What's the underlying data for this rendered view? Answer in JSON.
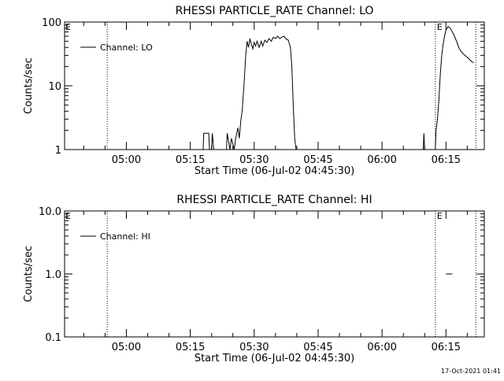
{
  "chart_data": [
    {
      "type": "line",
      "title": "RHESSI PARTICLE_RATE Channel: LO",
      "xlabel": "Start Time (06-Jul-02 04:45:30)",
      "ylabel": "Counts/sec",
      "y_scale": "log",
      "ylim": [
        1,
        100
      ],
      "xlim": [
        "04:45:30",
        "06:24:00"
      ],
      "x_ticks": [
        "05:00",
        "05:15",
        "05:30",
        "05:45",
        "06:00",
        "06:15"
      ],
      "y_ticks": [
        "1",
        "10",
        "100"
      ],
      "legend": {
        "placement": "top-left",
        "entries": [
          "Channel: LO"
        ]
      },
      "markers": [
        {
          "time": "04:55:30",
          "label": ""
        },
        {
          "time": "06:12:30",
          "label": "E"
        },
        {
          "time": "06:22:00",
          "label": ""
        }
      ],
      "left_marker_label": "E",
      "series": [
        {
          "name": "Channel: LO",
          "segments": [
            [
              [
                "05:18:00",
                1
              ],
              [
                "05:18:10",
                1.8
              ],
              [
                "05:19:20",
                1.8
              ],
              [
                "05:19:30",
                1
              ],
              [
                "05:20:00",
                1
              ],
              [
                "05:20:10",
                1.8
              ],
              [
                "05:20:30",
                1
              ]
            ],
            [
              [
                "05:23:30",
                1
              ],
              [
                "05:23:40",
                1.8
              ],
              [
                "05:24:20",
                1
              ],
              [
                "05:24:40",
                1.5
              ],
              [
                "05:25:20",
                1
              ],
              [
                "05:25:40",
                1.5
              ],
              [
                "05:26:10",
                2.2
              ],
              [
                "05:26:30",
                1.5
              ],
              [
                "05:26:50",
                2.8
              ],
              [
                "05:27:10",
                4
              ],
              [
                "05:27:40",
                12
              ],
              [
                "05:28:00",
                30
              ],
              [
                "05:28:20",
                50
              ],
              [
                "05:28:40",
                40
              ],
              [
                "05:29:00",
                55
              ],
              [
                "05:29:20",
                45
              ],
              [
                "05:29:40",
                38
              ],
              [
                "05:30:00",
                48
              ],
              [
                "05:30:20",
                42
              ],
              [
                "05:30:40",
                50
              ],
              [
                "05:31:10",
                40
              ],
              [
                "05:31:40",
                50
              ],
              [
                "05:32:00",
                42
              ],
              [
                "05:32:30",
                52
              ],
              [
                "05:33:00",
                48
              ],
              [
                "05:33:30",
                55
              ],
              [
                "05:34:00",
                50
              ],
              [
                "05:34:30",
                58
              ],
              [
                "05:35:00",
                55
              ],
              [
                "05:35:30",
                60
              ],
              [
                "05:36:00",
                55
              ],
              [
                "05:36:30",
                58
              ],
              [
                "05:37:00",
                60
              ],
              [
                "05:37:30",
                54
              ],
              [
                "05:38:00",
                52
              ],
              [
                "05:38:30",
                40
              ],
              [
                "05:38:50",
                20
              ],
              [
                "05:39:10",
                5
              ],
              [
                "05:39:30",
                1.5
              ],
              [
                "05:39:50",
                1
              ]
            ],
            [
              [
                "06:09:40",
                1
              ],
              [
                "06:09:50",
                1.8
              ],
              [
                "06:10:00",
                1
              ]
            ],
            [
              [
                "06:12:30",
                1
              ],
              [
                "06:12:40",
                2
              ],
              [
                "06:13:00",
                3
              ],
              [
                "06:13:20",
                6
              ],
              [
                "06:13:40",
                15
              ],
              [
                "06:14:00",
                30
              ],
              [
                "06:14:20",
                45
              ],
              [
                "06:14:40",
                60
              ],
              [
                "06:15:00",
                75
              ],
              [
                "06:15:30",
                85
              ],
              [
                "06:16:00",
                80
              ],
              [
                "06:16:30",
                70
              ],
              [
                "06:17:00",
                60
              ],
              [
                "06:17:30",
                50
              ],
              [
                "06:18:00",
                40
              ],
              [
                "06:18:30",
                35
              ],
              [
                "06:19:00",
                32
              ],
              [
                "06:19:30",
                30
              ],
              [
                "06:20:00",
                28
              ],
              [
                "06:20:30",
                26
              ],
              [
                "06:21:00",
                24
              ],
              [
                "06:21:30",
                23
              ]
            ]
          ]
        }
      ]
    },
    {
      "type": "line",
      "title": "RHESSI PARTICLE_RATE Channel: HI",
      "xlabel": "Start Time (06-Jul-02 04:45:30)",
      "ylabel": "Counts/sec",
      "y_scale": "log",
      "ylim": [
        0.1,
        10
      ],
      "xlim": [
        "04:45:30",
        "06:24:00"
      ],
      "x_ticks": [
        "05:00",
        "05:15",
        "05:30",
        "05:45",
        "06:00",
        "06:15"
      ],
      "y_ticks": [
        "0.1",
        "1.0",
        "10.0"
      ],
      "legend": {
        "placement": "top-left",
        "entries": [
          "Channel: HI"
        ]
      },
      "markers": [
        {
          "time": "04:55:30",
          "label": ""
        },
        {
          "time": "06:12:30",
          "label": "E"
        },
        {
          "time": "06:22:00",
          "label": ""
        }
      ],
      "left_marker_label": "E",
      "series": [
        {
          "name": "Channel: HI",
          "segments": [
            [
              [
                "06:15:00",
                1
              ],
              [
                "06:16:30",
                1
              ]
            ]
          ]
        }
      ]
    }
  ],
  "footer": {
    "timestamp": "17-Oct-2021 01:41"
  }
}
